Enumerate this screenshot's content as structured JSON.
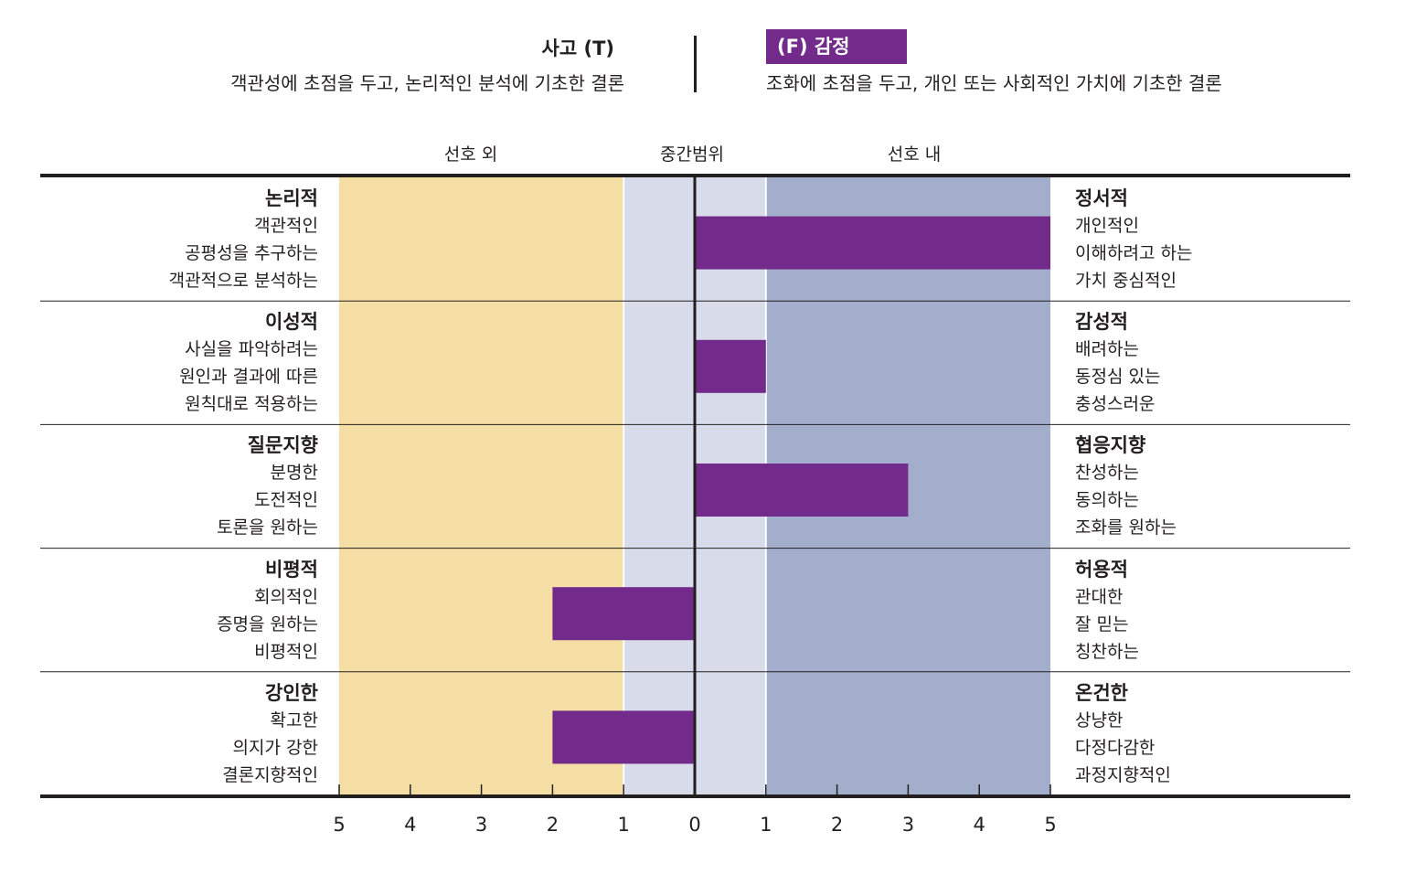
{
  "header": {
    "thinking_title": "사고 (T)",
    "thinking_desc": "객관성에 초점을 두고, 논리적인 분석에 기초한 결론",
    "feeling_title": "(F) 감정",
    "feeling_desc": "조화에 초점을 두고, 개인 또는 사회적인 가치에 기초한 결론"
  },
  "zones": {
    "out": "선호 외",
    "mid": "중간범위",
    "in": "선호 내"
  },
  "colors": {
    "zone_out": "#f5dea3",
    "zone_mid": "#d8dbea",
    "zone_in": "#a2aecb",
    "bar": "#722b8b",
    "axis": "#231f20"
  },
  "rows": [
    {
      "left_title": "논리적",
      "left_items": [
        "객관적인",
        "공평성을 추구하는",
        "객관적으로 분석하는"
      ],
      "right_title": "정서적",
      "right_items": [
        "개인적인",
        "이해하려고 하는",
        "가치 중심적인"
      ]
    },
    {
      "left_title": "이성적",
      "left_items": [
        "사실을 파악하려는",
        "원인과 결과에 따른",
        "원칙대로 적용하는"
      ],
      "right_title": "감성적",
      "right_items": [
        "배려하는",
        "동정심 있는",
        "충성스러운"
      ]
    },
    {
      "left_title": "질문지향",
      "left_items": [
        "분명한",
        "도전적인",
        "토론을 원하는"
      ],
      "right_title": "협응지향",
      "right_items": [
        "찬성하는",
        "동의하는",
        "조화를 원하는"
      ]
    },
    {
      "left_title": "비평적",
      "left_items": [
        "회의적인",
        "증명을 원하는",
        "비평적인"
      ],
      "right_title": "허용적",
      "right_items": [
        "관대한",
        "잘 믿는",
        "칭찬하는"
      ]
    },
    {
      "left_title": "강인한",
      "left_items": [
        "확고한",
        "의지가 강한",
        "결론지향적인"
      ],
      "right_title": "온건한",
      "right_items": [
        "상냥한",
        "다정다감한",
        "과정지향적인"
      ]
    }
  ],
  "chart_data": {
    "type": "bar",
    "orientation": "horizontal-diverging",
    "categories": [
      "논리적 / 정서적",
      "이성적 / 감성적",
      "질문지향 / 협응지향",
      "비평적 / 허용적",
      "강인한 / 온건한"
    ],
    "values": [
      5,
      1,
      3,
      -2,
      -2
    ],
    "xlim": [
      -5,
      5
    ],
    "tick_labels": [
      "5",
      "4",
      "3",
      "2",
      "1",
      "0",
      "1",
      "2",
      "3",
      "4",
      "5"
    ],
    "bands": [
      {
        "label": "선호 외",
        "from": -5,
        "to": -1
      },
      {
        "label": "중간범위",
        "from": -1,
        "to": 1
      },
      {
        "label": "선호 내",
        "from": 1,
        "to": 5
      }
    ]
  }
}
